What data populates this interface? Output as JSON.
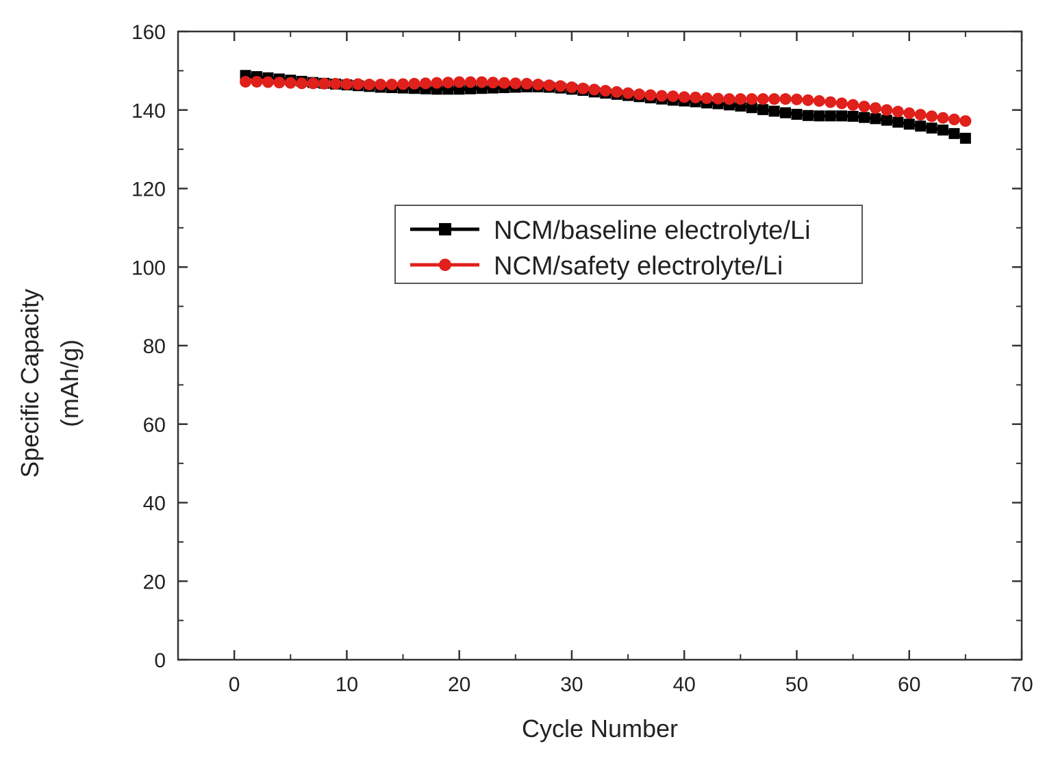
{
  "chart_data": {
    "type": "line",
    "title": "",
    "xlabel": "Cycle Number",
    "ylabel_lines": [
      "Specific Capacity",
      "(mAh/g)"
    ],
    "xlim": [
      -5,
      70
    ],
    "ylim": [
      0,
      160
    ],
    "x_ticks": [
      0,
      10,
      20,
      30,
      40,
      50,
      60,
      70
    ],
    "x_tick_labels": [
      "0",
      "10",
      "20",
      "30",
      "40",
      "50",
      "60",
      "70"
    ],
    "y_ticks": [
      0,
      20,
      40,
      60,
      80,
      100,
      120,
      140,
      160
    ],
    "y_tick_labels": [
      "0",
      "20",
      "40",
      "60",
      "80",
      "100",
      "120",
      "140",
      "160"
    ],
    "grid": false,
    "legend_position": "center-right",
    "x": [
      1,
      2,
      3,
      4,
      5,
      6,
      7,
      8,
      9,
      10,
      11,
      12,
      13,
      14,
      15,
      16,
      17,
      18,
      19,
      20,
      21,
      22,
      23,
      24,
      25,
      26,
      27,
      28,
      29,
      30,
      31,
      32,
      33,
      34,
      35,
      36,
      37,
      38,
      39,
      40,
      41,
      42,
      43,
      44,
      45,
      46,
      47,
      48,
      49,
      50,
      51,
      52,
      53,
      54,
      55,
      56,
      57,
      58,
      59,
      60,
      61,
      62,
      63,
      64,
      65
    ],
    "series": [
      {
        "name": "NCM/baseline electrolyte/Li",
        "color": "#000000",
        "marker": "square",
        "values": [
          148.8,
          148.5,
          148.2,
          147.9,
          147.6,
          147.3,
          147.0,
          146.8,
          146.6,
          146.4,
          146.2,
          146.0,
          145.8,
          145.7,
          145.6,
          145.5,
          145.4,
          145.3,
          145.3,
          145.3,
          145.4,
          145.5,
          145.6,
          145.7,
          145.8,
          145.9,
          145.9,
          145.8,
          145.6,
          145.3,
          145.0,
          144.6,
          144.3,
          144.0,
          143.7,
          143.4,
          143.1,
          142.8,
          142.5,
          142.3,
          142.1,
          141.8,
          141.6,
          141.3,
          141.0,
          140.6,
          140.1,
          139.7,
          139.3,
          138.9,
          138.6,
          138.5,
          138.5,
          138.5,
          138.4,
          138.1,
          137.8,
          137.4,
          136.9,
          136.4,
          135.9,
          135.4,
          134.9,
          134.0,
          132.8
        ]
      },
      {
        "name": "NCM/safety electrolyte/Li",
        "color": "#e0201b",
        "marker": "circle",
        "values": [
          147.2,
          147.2,
          147.1,
          147.0,
          146.9,
          146.8,
          146.8,
          146.7,
          146.7,
          146.6,
          146.6,
          146.5,
          146.5,
          146.5,
          146.6,
          146.7,
          146.8,
          146.9,
          147.0,
          147.1,
          147.1,
          147.1,
          147.0,
          146.9,
          146.8,
          146.7,
          146.5,
          146.3,
          146.1,
          145.8,
          145.5,
          145.2,
          144.9,
          144.6,
          144.3,
          144.0,
          143.8,
          143.6,
          143.5,
          143.3,
          143.2,
          143.0,
          142.9,
          142.8,
          142.8,
          142.8,
          142.8,
          142.8,
          142.8,
          142.7,
          142.5,
          142.3,
          142.0,
          141.7,
          141.3,
          140.9,
          140.5,
          140.0,
          139.6,
          139.2,
          138.8,
          138.4,
          138.0,
          137.6,
          137.2
        ]
      }
    ]
  }
}
